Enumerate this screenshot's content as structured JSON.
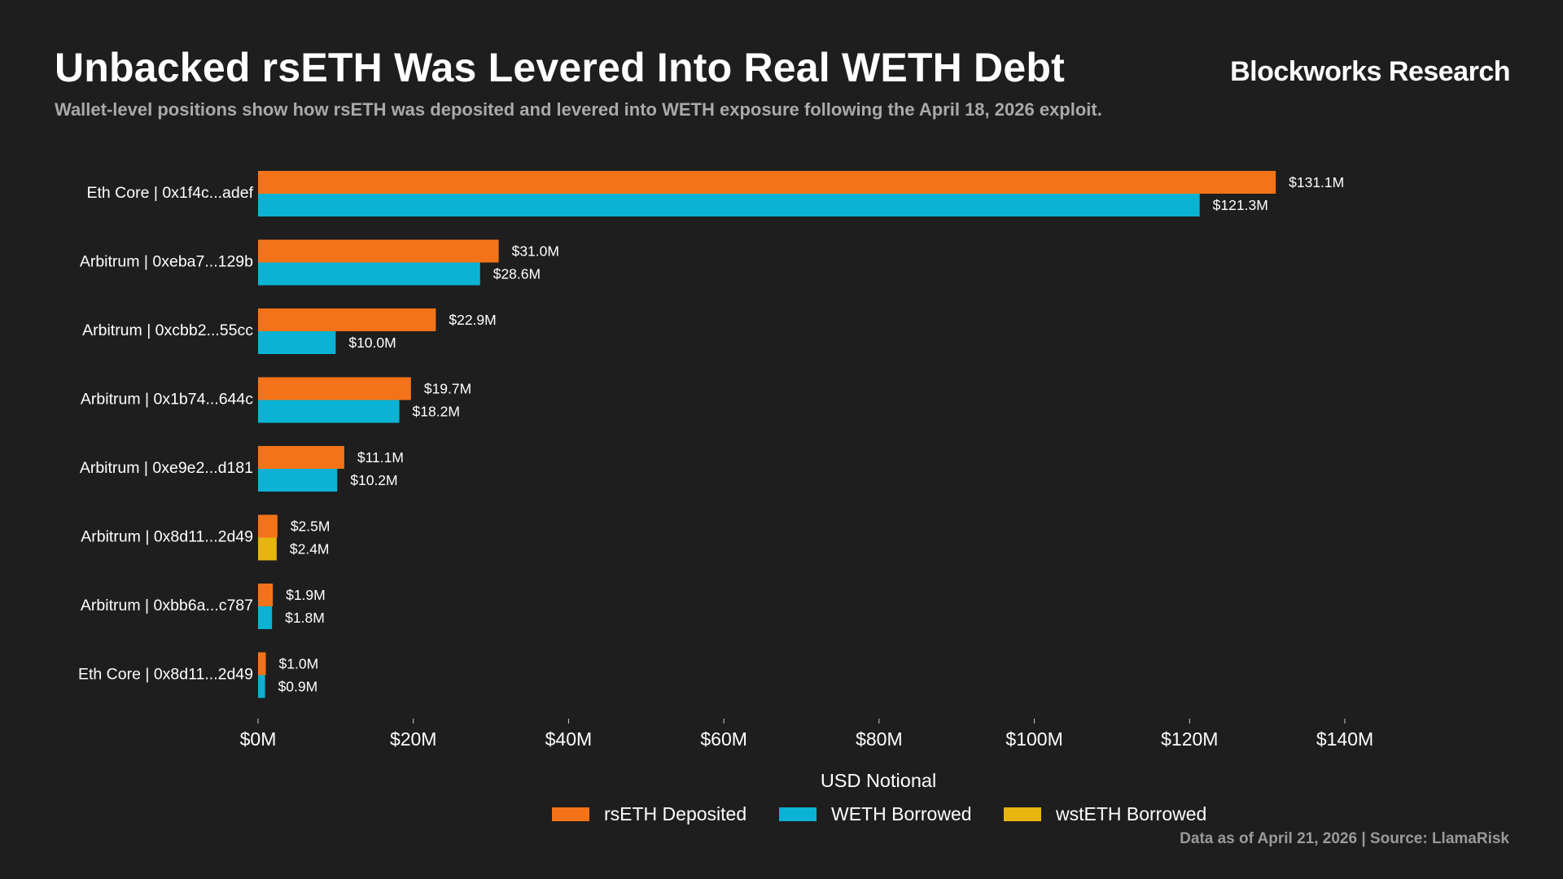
{
  "header": {
    "title": "Unbacked rsETH Was Levered Into Real WETH Debt",
    "brand": "Blockworks Research",
    "subtitle": "Wallet-level positions show how rsETH was deposited and levered into WETH exposure following the April 18, 2026 exploit."
  },
  "footer": {
    "source": "Data as of April 21, 2026 | Source: LlamaRisk"
  },
  "colors": {
    "background": "#1e1e1e",
    "rsETH": "#f57318",
    "WETH": "#0ab3d4",
    "wstETH": "#e8b40e"
  },
  "chart_data": {
    "type": "bar",
    "orientation": "horizontal",
    "title": "Unbacked rsETH Was Levered Into Real WETH Debt",
    "xlabel": "USD Notional",
    "ylabel": "",
    "xlim": [
      0,
      140
    ],
    "x_ticks": [
      0,
      20,
      40,
      60,
      80,
      100,
      120,
      140
    ],
    "x_tick_labels": [
      "$0M",
      "$20M",
      "$40M",
      "$60M",
      "$80M",
      "$100M",
      "$120M",
      "$140M"
    ],
    "grid": false,
    "legend_position": "bottom-center",
    "categories": [
      "Eth Core | 0x1f4c...adef",
      "Arbitrum | 0xeba7...129b",
      "Arbitrum | 0xcbb2...55cc",
      "Arbitrum | 0x1b74...644c",
      "Arbitrum | 0xe9e2...d181",
      "Arbitrum | 0x8d11...2d49",
      "Arbitrum | 0xbb6a...c787",
      "Eth Core | 0x8d11...2d49"
    ],
    "series": [
      {
        "name": "rsETH Deposited",
        "color": "#f57318",
        "values": [
          131.1,
          31.0,
          22.9,
          19.7,
          11.1,
          2.5,
          1.9,
          1.0
        ],
        "labels": [
          "$131.1M",
          "$31.0M",
          "$22.9M",
          "$19.7M",
          "$11.1M",
          "$2.5M",
          "$1.9M",
          "$1.0M"
        ]
      },
      {
        "name": "WETH Borrowed",
        "color": "#0ab3d4",
        "values": [
          121.3,
          28.6,
          10.0,
          18.2,
          10.2,
          null,
          1.8,
          0.9
        ],
        "labels": [
          "$121.3M",
          "$28.6M",
          "$10.0M",
          "$18.2M",
          "$10.2M",
          null,
          "$1.8M",
          "$0.9M"
        ]
      },
      {
        "name": "wstETH Borrowed",
        "color": "#e8b40e",
        "values": [
          null,
          null,
          null,
          null,
          null,
          2.4,
          null,
          null
        ],
        "labels": [
          null,
          null,
          null,
          null,
          null,
          "$2.4M",
          null,
          null
        ]
      }
    ]
  }
}
